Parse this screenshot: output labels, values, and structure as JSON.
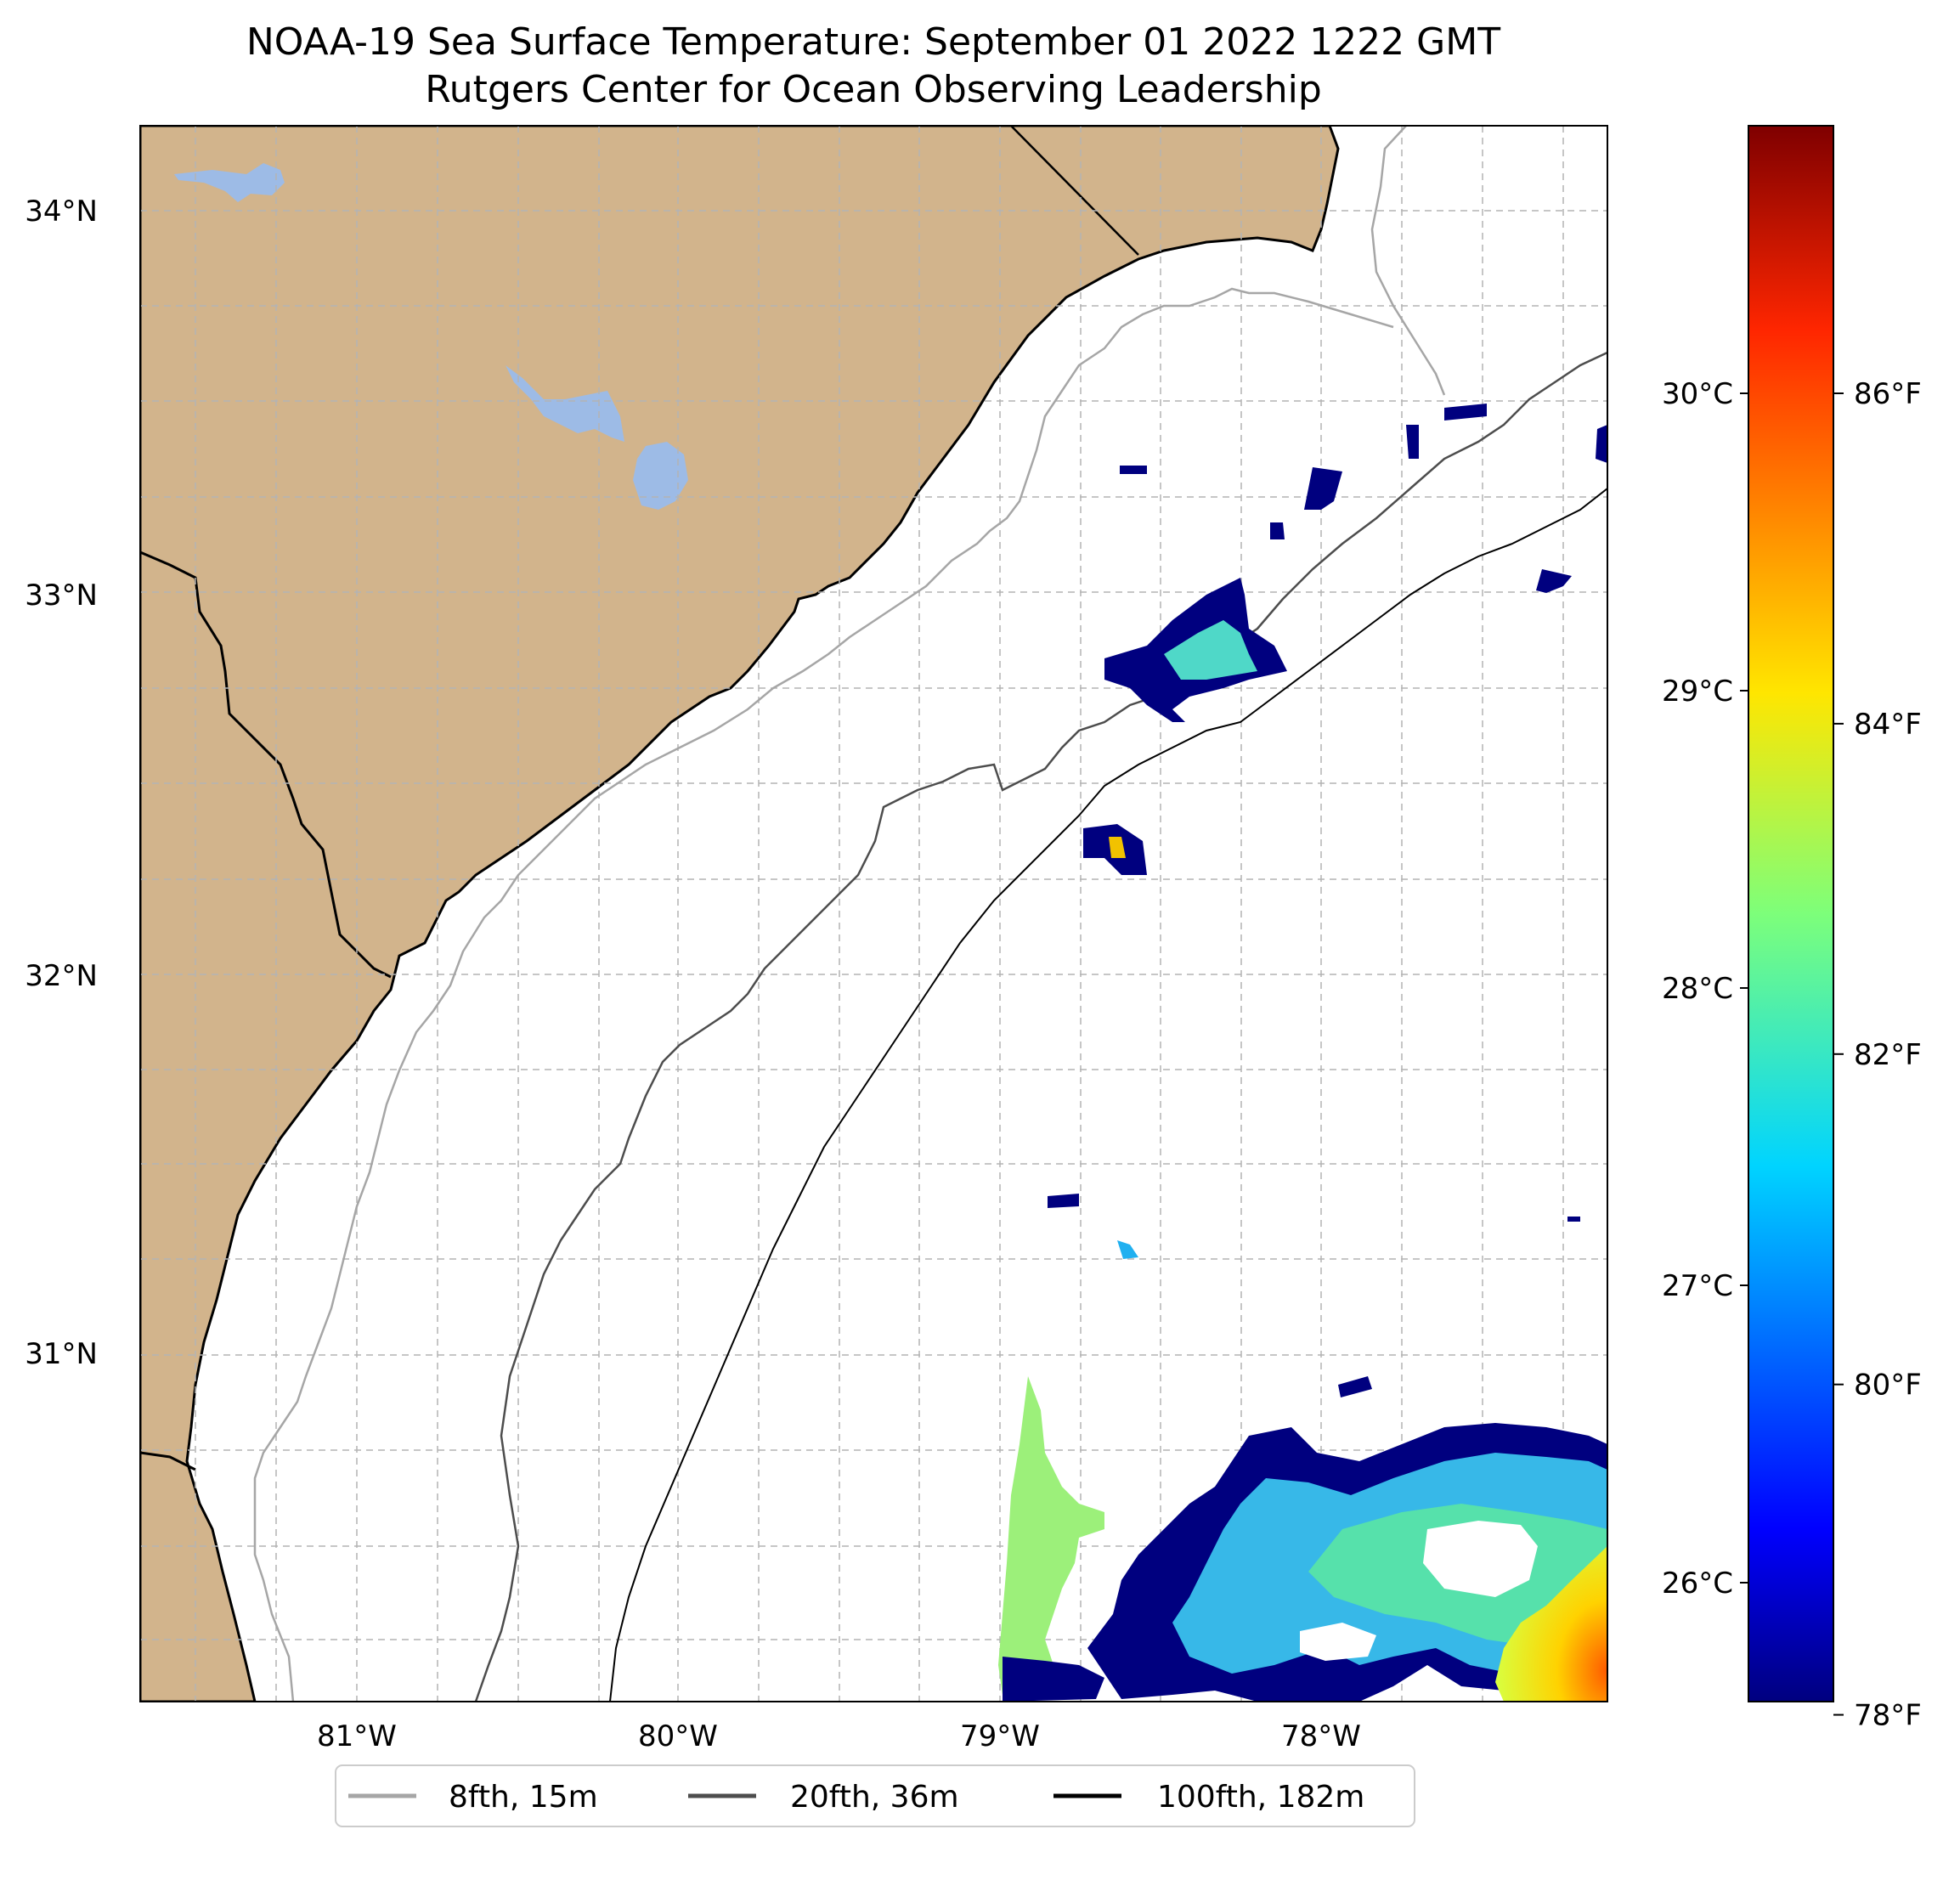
{
  "title": {
    "line1": "NOAA-19 Sea Surface Temperature: September 01 2022 1222 GMT",
    "line2": "Rutgers Center for Ocean Observing Leadership"
  },
  "axes": {
    "lat_labels": [
      "34°N",
      "33°N",
      "32°N",
      "31°N"
    ],
    "lon_labels": [
      "81°W",
      "80°W",
      "79°W",
      "78°W"
    ]
  },
  "colorbar": {
    "celsius_labels": [
      "30°C",
      "29°C",
      "28°C",
      "27°C",
      "26°C"
    ],
    "fahrenheit_labels": [
      "86°F",
      "84°F",
      "82°F",
      "80°F",
      "78°F"
    ],
    "celsius_values": [
      30,
      29,
      28,
      27,
      26
    ],
    "fahrenheit_values": [
      86,
      84,
      82,
      80,
      78
    ],
    "range_c": [
      25.6,
      30.9
    ],
    "colormap": "jet"
  },
  "legend": {
    "items": [
      {
        "label": "8fth, 15m",
        "color": "#a6a6a6"
      },
      {
        "label": "20fth, 36m",
        "color": "#4d4d4d"
      },
      {
        "label": "100fth, 182m",
        "color": "#000000"
      }
    ]
  },
  "colors": {
    "land": "#d2b48c",
    "water_body": "#9dbbe6",
    "gridline": "#b3b3b3"
  }
}
